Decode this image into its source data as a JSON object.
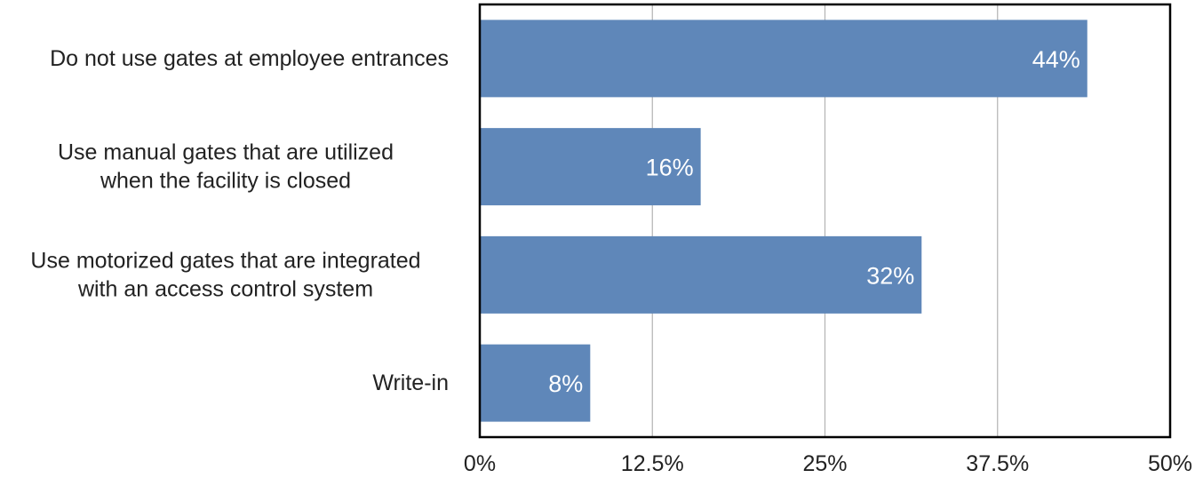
{
  "chart_data": {
    "type": "bar",
    "orientation": "horizontal",
    "title": "",
    "xlabel": "",
    "ylabel": "",
    "categories": [
      [
        "Do not use gates at employee entrances"
      ],
      [
        "Use manual gates that are utilized",
        "when the facility is closed"
      ],
      [
        "Use motorized gates that are integrated",
        "with an access control system"
      ],
      [
        "Write-in"
      ]
    ],
    "values": [
      44,
      16,
      32,
      8
    ],
    "data_labels": [
      "44%",
      "16%",
      "32%",
      "8%"
    ],
    "xlim": [
      0,
      50
    ],
    "x_ticks": [
      0,
      12.5,
      25,
      37.5,
      50
    ],
    "x_tick_labels": [
      "0%",
      "12.5%",
      "25%",
      "37.5%",
      "50%"
    ],
    "grid": "vertical",
    "legend": "none",
    "colors": {
      "bar": "#5f87b9",
      "gridline": "#b3b3b3",
      "frame": "#000000",
      "text": "#222222",
      "data_label": "#ffffff"
    }
  }
}
